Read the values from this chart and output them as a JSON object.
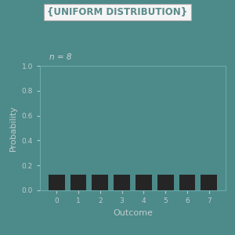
{
  "n": 8,
  "outcomes": [
    0,
    1,
    2,
    3,
    4,
    5,
    6,
    7
  ],
  "probabilities": [
    0.125,
    0.125,
    0.125,
    0.125,
    0.125,
    0.125,
    0.125,
    0.125
  ],
  "bar_color": "#252525",
  "background_color": "#4d8a8a",
  "plot_bg_color": "#4d8a8a",
  "title": "{UNIFORM DISTRIBUTION}",
  "title_box_facecolor": "#f5f5f5",
  "title_box_edgecolor": "#aaaaaa",
  "title_text_color": "#5a8a8a",
  "xlabel": "Outcome",
  "ylabel": "Probability",
  "ylim": [
    0.0,
    1.0
  ],
  "yticks": [
    0.0,
    0.2,
    0.4,
    0.6,
    0.8,
    1.0
  ],
  "annotation": "n = 8",
  "annotation_color": "#d0d8d8",
  "tick_color": "#c0cccc",
  "spine_color": "#6aabab",
  "label_color": "#c0cccc",
  "bar_width": 0.75
}
